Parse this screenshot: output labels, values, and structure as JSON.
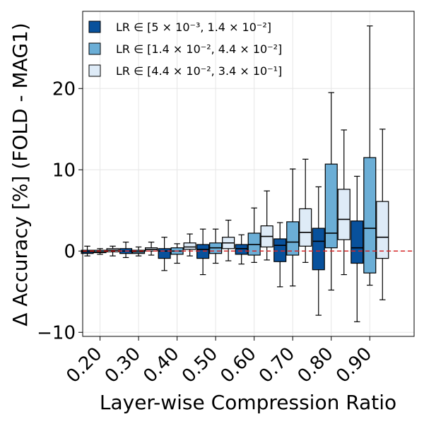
{
  "chart_data": {
    "type": "box",
    "title": "",
    "xlabel": "Layer-wise Compression Ratio",
    "ylabel": "Δ Accuracy [%] (FOLD - MAG1)",
    "categories": [
      "0.20",
      "0.30",
      "0.40",
      "0.50",
      "0.60",
      "0.70",
      "0.80",
      "0.90"
    ],
    "x_range": [
      0.125,
      0.985
    ],
    "ylim": [
      -10.5,
      29.5
    ],
    "yticks": [
      -10,
      0,
      10,
      20
    ],
    "ytick_labels": [
      "−10",
      "0",
      "10",
      "20"
    ],
    "grid": true,
    "legend_position": "top-left",
    "reference_line": {
      "y": 0,
      "color": "#d62728",
      "style": "dashed"
    },
    "series": [
      {
        "name": "LR ∈ [5 × 10⁻³, 1.4 × 10⁻²]",
        "color": "#08519c",
        "offset": -0.033,
        "boxes": [
          {
            "x": 0.15,
            "whislo": -0.6,
            "q1": -0.3,
            "med": -0.1,
            "q3": 0.1,
            "whishi": 0.6
          },
          {
            "x": 0.25,
            "whislo": -0.8,
            "q1": -0.3,
            "med": 0.0,
            "q3": 0.3,
            "whishi": 1.1
          },
          {
            "x": 0.35,
            "whislo": -2.4,
            "q1": -0.9,
            "med": 0.0,
            "q3": 0.3,
            "whishi": 1.7
          },
          {
            "x": 0.45,
            "whislo": -2.9,
            "q1": -0.9,
            "med": 0.2,
            "q3": 0.8,
            "whishi": 2.7
          },
          {
            "x": 0.55,
            "whislo": -1.6,
            "q1": -0.4,
            "med": 0.3,
            "q3": 0.8,
            "whishi": 2.0
          },
          {
            "x": 0.65,
            "whislo": -4.4,
            "q1": -1.3,
            "med": 0.7,
            "q3": 1.5,
            "whishi": 3.5
          },
          {
            "x": 0.75,
            "whislo": -7.9,
            "q1": -2.3,
            "med": 1.2,
            "q3": 2.8,
            "whishi": 7.9
          },
          {
            "x": 0.85,
            "whislo": -8.7,
            "q1": -1.5,
            "med": 0.4,
            "q3": 3.7,
            "whishi": 9.2
          }
        ]
      },
      {
        "name": "LR ∈ [1.4 × 10⁻², 4.4 × 10⁻²]",
        "color": "#6baed6",
        "offset": 0.0,
        "boxes": [
          {
            "x": 0.15,
            "whislo": -0.4,
            "q1": -0.2,
            "med": -0.1,
            "q3": 0.1,
            "whishi": 0.3
          },
          {
            "x": 0.25,
            "whislo": -0.6,
            "q1": -0.3,
            "med": -0.1,
            "q3": 0.1,
            "whishi": 0.5
          },
          {
            "x": 0.35,
            "whislo": -1.5,
            "q1": -0.4,
            "med": 0.0,
            "q3": 0.4,
            "whishi": 0.9
          },
          {
            "x": 0.45,
            "whislo": -1.5,
            "q1": -0.3,
            "med": 0.4,
            "q3": 1.0,
            "whishi": 2.7
          },
          {
            "x": 0.55,
            "whislo": -1.4,
            "q1": -0.5,
            "med": 0.8,
            "q3": 2.2,
            "whishi": 5.3
          },
          {
            "x": 0.65,
            "whislo": -4.3,
            "q1": -0.5,
            "med": 1.1,
            "q3": 3.6,
            "whishi": 10.1
          },
          {
            "x": 0.75,
            "whislo": -4.8,
            "q1": 0.4,
            "med": 2.2,
            "q3": 10.7,
            "whishi": 19.5
          },
          {
            "x": 0.85,
            "whislo": -4.2,
            "q1": -2.7,
            "med": 2.8,
            "q3": 11.5,
            "whishi": 27.7
          }
        ]
      },
      {
        "name": "LR ∈ [4.4 × 10⁻², 3.4 × 10⁻¹]",
        "color": "#deebf7",
        "offset": 0.033,
        "boxes": [
          {
            "x": 0.15,
            "whislo": -0.6,
            "q1": -0.1,
            "med": 0.1,
            "q3": 0.3,
            "whishi": 0.6
          },
          {
            "x": 0.25,
            "whislo": -0.5,
            "q1": 0.0,
            "med": 0.2,
            "q3": 0.4,
            "whishi": 1.1
          },
          {
            "x": 0.35,
            "whislo": -0.6,
            "q1": 0.2,
            "med": 0.5,
            "q3": 1.0,
            "whishi": 2.1
          },
          {
            "x": 0.45,
            "whislo": -1.2,
            "q1": 0.3,
            "med": 1.0,
            "q3": 1.7,
            "whishi": 3.8
          },
          {
            "x": 0.55,
            "whislo": -1.1,
            "q1": 0.5,
            "med": 1.8,
            "q3": 3.1,
            "whishi": 7.4
          },
          {
            "x": 0.65,
            "whislo": -1.4,
            "q1": 0.6,
            "med": 2.3,
            "q3": 5.2,
            "whishi": 11.3
          },
          {
            "x": 0.75,
            "whislo": -2.9,
            "q1": 1.4,
            "med": 3.9,
            "q3": 7.6,
            "whishi": 14.9
          },
          {
            "x": 0.85,
            "whislo": -6.0,
            "q1": -0.9,
            "med": 1.7,
            "q3": 6.1,
            "whishi": 15.0
          }
        ]
      }
    ]
  }
}
